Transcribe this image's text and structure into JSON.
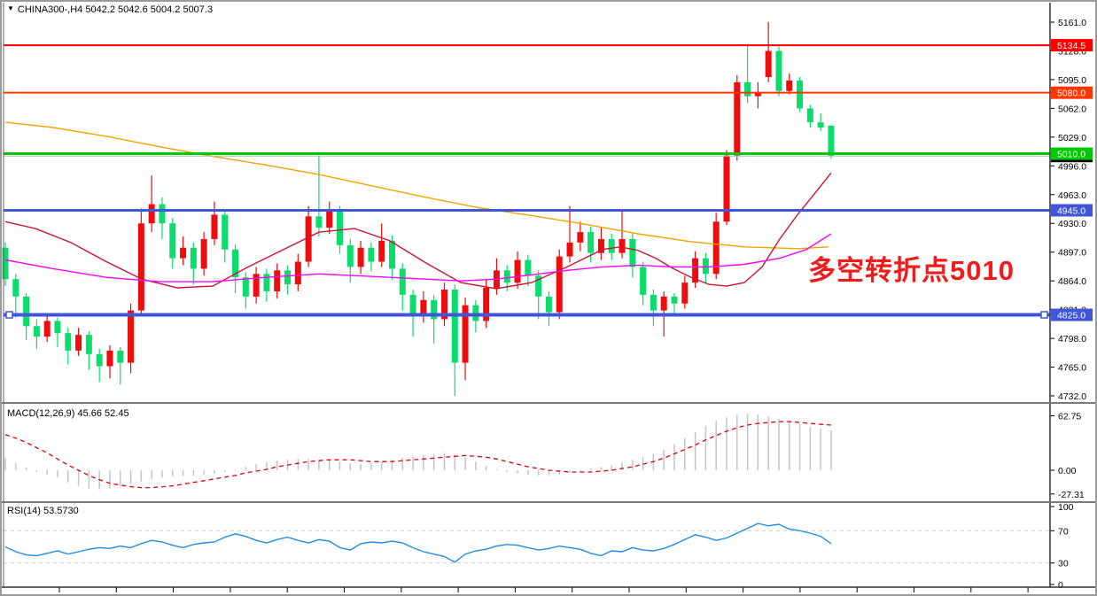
{
  "window": {
    "bg": "#ffffff",
    "border_color": "#9a9a9a"
  },
  "main_chart": {
    "dropdown_arrow": "▼",
    "symbol": "CHINA300-,H4",
    "ohlc_text": "5042.2 5042.6 5004.2 5007.3",
    "annotation": {
      "text": "多空转折点5010",
      "color": "#f21a1a"
    }
  },
  "macd_panel": {
    "label": "MACD(12,26,9) 45.66 52.45"
  },
  "rsi_panel": {
    "label": "RSI(14) 53.5730"
  },
  "chart_data": [
    {
      "type": "candlestick",
      "symbol": "CHINA300-,H4",
      "timeframe": "H4",
      "current_bar": {
        "open": 5042.2,
        "high": 5042.6,
        "low": 5004.2,
        "close": 5007.3
      },
      "up_color": "#ee0c0c",
      "down_color": "#0bdc6c",
      "ylim": [
        4732,
        5161
      ],
      "y_ticks": [
        "5161.0",
        "5128.0",
        "5095.0",
        "5062.0",
        "5029.0",
        "4996.0",
        "4963.0",
        "4930.0",
        "4897.0",
        "4864.0",
        "4831.0",
        "4798.0",
        "4765.0",
        "4732.0"
      ],
      "candles": [
        [
          4902,
          4908,
          4858,
          4866
        ],
        [
          4866,
          4872,
          4822,
          4846
        ],
        [
          4846,
          4850,
          4796,
          4812
        ],
        [
          4812,
          4820,
          4786,
          4800
        ],
        [
          4800,
          4826,
          4794,
          4818
        ],
        [
          4818,
          4822,
          4788,
          4804
        ],
        [
          4804,
          4810,
          4768,
          4784
        ],
        [
          4784,
          4810,
          4778,
          4802
        ],
        [
          4802,
          4806,
          4762,
          4780
        ],
        [
          4780,
          4786,
          4748,
          4766
        ],
        [
          4766,
          4790,
          4752,
          4784
        ],
        [
          4784,
          4788,
          4745,
          4770
        ],
        [
          4770,
          4838,
          4758,
          4830
        ],
        [
          4830,
          4947,
          4826,
          4930
        ],
        [
          4930,
          4985,
          4920,
          4952
        ],
        [
          4952,
          4960,
          4912,
          4930
        ],
        [
          4930,
          4936,
          4878,
          4890
        ],
        [
          4890,
          4915,
          4882,
          4902
        ],
        [
          4902,
          4908,
          4860,
          4878
        ],
        [
          4878,
          4920,
          4870,
          4912
        ],
        [
          4912,
          4955,
          4905,
          4940
        ],
        [
          4940,
          4946,
          4885,
          4900
        ],
        [
          4900,
          4906,
          4850,
          4868
        ],
        [
          4868,
          4874,
          4832,
          4846
        ],
        [
          4846,
          4880,
          4838,
          4872
        ],
        [
          4872,
          4878,
          4840,
          4852
        ],
        [
          4852,
          4884,
          4844,
          4876
        ],
        [
          4876,
          4882,
          4848,
          4860
        ],
        [
          4860,
          4895,
          4852,
          4886
        ],
        [
          4886,
          4950,
          4880,
          4938
        ],
        [
          4938,
          5008,
          4915,
          4925
        ],
        [
          4925,
          4955,
          4918,
          4945
        ],
        [
          4945,
          4950,
          4895,
          4905
        ],
        [
          4905,
          4912,
          4862,
          4880
        ],
        [
          4880,
          4910,
          4872,
          4902
        ],
        [
          4902,
          4908,
          4875,
          4886
        ],
        [
          4886,
          4930,
          4880,
          4910
        ],
        [
          4910,
          4916,
          4865,
          4878
        ],
        [
          4878,
          4884,
          4830,
          4848
        ],
        [
          4848,
          4854,
          4800,
          4824
        ],
        [
          4824,
          4852,
          4816,
          4842
        ],
        [
          4842,
          4848,
          4792,
          4820
        ],
        [
          4820,
          4862,
          4812,
          4854
        ],
        [
          4854,
          4860,
          4732,
          4770
        ],
        [
          4770,
          4845,
          4750,
          4836
        ],
        [
          4836,
          4842,
          4805,
          4818
        ],
        [
          4818,
          4865,
          4810,
          4856
        ],
        [
          4856,
          4890,
          4848,
          4876
        ],
        [
          4876,
          4882,
          4852,
          4862
        ],
        [
          4862,
          4898,
          4855,
          4888
        ],
        [
          4888,
          4894,
          4858,
          4870
        ],
        [
          4870,
          4876,
          4820,
          4846
        ],
        [
          4846,
          4852,
          4812,
          4828
        ],
        [
          4828,
          4900,
          4820,
          4892
        ],
        [
          4892,
          4950,
          4885,
          4908
        ],
        [
          4908,
          4932,
          4898,
          4920
        ],
        [
          4920,
          4926,
          4885,
          4896
        ],
        [
          4896,
          4925,
          4888,
          4912
        ],
        [
          4912,
          4918,
          4888,
          4896
        ],
        [
          4896,
          4946,
          4890,
          4912
        ],
        [
          4912,
          4918,
          4868,
          4880
        ],
        [
          4880,
          4886,
          4836,
          4848
        ],
        [
          4848,
          4854,
          4812,
          4830
        ],
        [
          4830,
          4852,
          4800,
          4846
        ],
        [
          4846,
          4850,
          4826,
          4838
        ],
        [
          4838,
          4870,
          4832,
          4862
        ],
        [
          4862,
          4898,
          4856,
          4890
        ],
        [
          4890,
          4896,
          4862,
          4872
        ],
        [
          4872,
          4942,
          4866,
          4932
        ],
        [
          4932,
          5014,
          4928,
          5008
        ],
        [
          5008,
          5100,
          5002,
          5092
        ],
        [
          5092,
          5136,
          5068,
          5076
        ],
        [
          5076,
          5092,
          5062,
          5080
        ],
        [
          5098,
          5161,
          5092,
          5128
        ],
        [
          5128,
          5133,
          5076,
          5082
        ],
        [
          5082,
          5102,
          5078,
          5094
        ],
        [
          5094,
          5098,
          5058,
          5062
        ],
        [
          5062,
          5066,
          5040,
          5046
        ],
        [
          5046,
          5056,
          5036,
          5040
        ],
        [
          5042.2,
          5042.6,
          5004.2,
          5007.3
        ]
      ],
      "moving_averages": [
        {
          "name": "ma-slow-orange",
          "color": "#f5a300",
          "points": [
            [
              6,
              5046
            ],
            [
              60,
              5040
            ],
            [
              120,
              5030
            ],
            [
              180,
              5018
            ],
            [
              240,
              5007
            ],
            [
              300,
              4997
            ],
            [
              360,
              4986
            ],
            [
              420,
              4973
            ],
            [
              480,
              4960
            ],
            [
              540,
              4948
            ],
            [
              600,
              4939
            ],
            [
              660,
              4929
            ],
            [
              720,
              4918
            ],
            [
              780,
              4909
            ],
            [
              840,
              4903
            ],
            [
              900,
              4901
            ],
            [
              935,
              4903
            ]
          ]
        },
        {
          "name": "ma-mid-crimson",
          "color": "#cf1232",
          "points": [
            [
              6,
              4932
            ],
            [
              40,
              4924
            ],
            [
              80,
              4908
            ],
            [
              120,
              4886
            ],
            [
              160,
              4866
            ],
            [
              200,
              4856
            ],
            [
              240,
              4858
            ],
            [
              280,
              4880
            ],
            [
              320,
              4900
            ],
            [
              360,
              4920
            ],
            [
              400,
              4924
            ],
            [
              440,
              4910
            ],
            [
              480,
              4885
            ],
            [
              520,
              4862
            ],
            [
              560,
              4855
            ],
            [
              600,
              4862
            ],
            [
              640,
              4880
            ],
            [
              680,
              4900
            ],
            [
              700,
              4903
            ],
            [
              720,
              4899
            ],
            [
              740,
              4890
            ],
            [
              760,
              4878
            ],
            [
              780,
              4868
            ],
            [
              800,
              4860
            ],
            [
              820,
              4858
            ],
            [
              840,
              4862
            ],
            [
              860,
              4880
            ],
            [
              880,
              4912
            ],
            [
              900,
              4940
            ],
            [
              920,
              4965
            ],
            [
              938,
              4988
            ]
          ]
        },
        {
          "name": "ma-fast-magenta",
          "color": "#ff00ff",
          "points": [
            [
              6,
              4888
            ],
            [
              60,
              4878
            ],
            [
              120,
              4868
            ],
            [
              180,
              4863
            ],
            [
              240,
              4863
            ],
            [
              300,
              4868
            ],
            [
              360,
              4872
            ],
            [
              420,
              4869
            ],
            [
              480,
              4866
            ],
            [
              520,
              4864
            ],
            [
              560,
              4866
            ],
            [
              600,
              4871
            ],
            [
              640,
              4876
            ],
            [
              680,
              4880
            ],
            [
              720,
              4882
            ],
            [
              760,
              4880
            ],
            [
              800,
              4880
            ],
            [
              840,
              4883
            ],
            [
              880,
              4890
            ],
            [
              910,
              4900
            ],
            [
              938,
              4918
            ]
          ]
        }
      ],
      "hlines": [
        {
          "price": 5134.5,
          "color": "#ff0000",
          "width": 2,
          "selected": false
        },
        {
          "price": 5080.0,
          "color": "#ff3600",
          "width": 2,
          "selected": false
        },
        {
          "price": 5007.3,
          "color": "#b8b8b8",
          "width": 1,
          "selected": false
        },
        {
          "price": 5010.0,
          "color": "#00c800",
          "width": 3,
          "selected": false
        },
        {
          "price": 4945.0,
          "color": "#3f56d8",
          "width": 3,
          "selected": false
        },
        {
          "price": 4825.0,
          "color": "#3f56d8",
          "width": 4,
          "selected": true
        }
      ],
      "price_labels": [
        {
          "text": "5134.5",
          "bg": "#ff0000",
          "price": 5134.5
        },
        {
          "text": "5080.0",
          "bg": "#ff3600",
          "price": 5080.0
        },
        {
          "text": "5007.3",
          "bg": "#000000",
          "price": 5007.3
        },
        {
          "text": "5010.0",
          "bg": "#00c800",
          "price": 5010.0
        },
        {
          "text": "4945.0",
          "bg": "#3f56d8",
          "price": 4945.0
        },
        {
          "text": "4825.0",
          "bg": "#3f56d8",
          "price": 4825.0
        }
      ],
      "annotation": {
        "text": "多空转折点5010",
        "color": "#f21a1a"
      }
    },
    {
      "type": "macd",
      "label": "MACD(12,26,9) 45.66 52.45",
      "params": [
        12,
        26,
        9
      ],
      "main_value": 45.66,
      "signal_value": 52.45,
      "ylim": [
        -27.31,
        62.75
      ],
      "y_ticks": [
        "62.75",
        "0.00",
        "-27.31"
      ],
      "histogram_color": "#c4c4c4",
      "signal_color": "#e00000",
      "histogram": [
        14,
        8,
        3,
        -2,
        -5,
        -8,
        -14,
        -18,
        -21,
        -22,
        -21,
        -19,
        -16,
        -13,
        -10,
        -8,
        -7,
        -7,
        -6,
        -5,
        -4,
        -2,
        1,
        4,
        7,
        9,
        11,
        12,
        13,
        13,
        12,
        11,
        10,
        8,
        7,
        8,
        10,
        12,
        14,
        16,
        18,
        19,
        20,
        18,
        15,
        10,
        5,
        1,
        -2,
        -4,
        -5,
        -6,
        -6,
        -5,
        -3,
        -1,
        2,
        4,
        6,
        9,
        12,
        15,
        19,
        24,
        30,
        37,
        44,
        51,
        57,
        61,
        64,
        65,
        64,
        62,
        59,
        56,
        53,
        50,
        48,
        46
      ],
      "signal": [
        41,
        37,
        32,
        26,
        20,
        13,
        6,
        0,
        -6,
        -11,
        -15,
        -17,
        -19,
        -20,
        -20,
        -19,
        -18,
        -16,
        -14,
        -12,
        -10,
        -8,
        -6,
        -3,
        -1,
        1,
        4,
        6,
        8,
        10,
        11,
        12,
        12,
        12,
        11,
        10,
        10,
        10,
        11,
        12,
        13,
        14,
        15,
        16,
        17,
        16,
        15,
        13,
        10,
        7,
        4,
        2,
        0,
        -1,
        -2,
        -2,
        -2,
        -1,
        0,
        2,
        4,
        7,
        10,
        14,
        19,
        24,
        29,
        35,
        40,
        45,
        49,
        52,
        54,
        55,
        56,
        56,
        55,
        54,
        53,
        52
      ]
    },
    {
      "type": "rsi",
      "label": "RSI(14) 53.5730",
      "period": 14,
      "value": 53.573,
      "ylim": [
        0,
        100
      ],
      "levels": [
        70,
        30
      ],
      "y_ticks": [
        "100",
        "70",
        "30",
        "0"
      ],
      "line_color": "#1f8ce8",
      "level_color": "#c9c9c9",
      "values": [
        50,
        44,
        40,
        39,
        42,
        45,
        41,
        44,
        47,
        49,
        48,
        51,
        49,
        54,
        58,
        56,
        52,
        49,
        53,
        55,
        56,
        62,
        66,
        63,
        58,
        55,
        59,
        62,
        58,
        55,
        59,
        57,
        49,
        46,
        54,
        56,
        55,
        57,
        55,
        49,
        44,
        41,
        38,
        31,
        41,
        45,
        47,
        51,
        53,
        52,
        49,
        46,
        48,
        51,
        49,
        47,
        42,
        39,
        45,
        44,
        49,
        46,
        45,
        48,
        53,
        59,
        65,
        62,
        58,
        61,
        67,
        73,
        79,
        76,
        78,
        72,
        70,
        67,
        63,
        54
      ]
    }
  ]
}
